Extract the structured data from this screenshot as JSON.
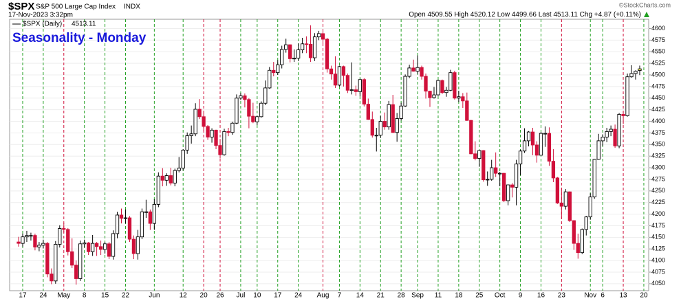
{
  "chart_data": {
    "type": "candlestick",
    "symbol": "$SPX",
    "name": "S&P 500 Large Cap Index",
    "exchange": "INDX",
    "timestamp": "17-Nov-2023 3:32pm",
    "credit": "©StockCharts.com",
    "quote": {
      "open_label": "Open",
      "open": 4509.55,
      "high_label": "High",
      "high": 4520.12,
      "low_label": "Low",
      "low": 4499.66,
      "last_label": "Last",
      "last": 4513.11,
      "chg_label": "Chg",
      "chg": "+4.87 (+0.11%)"
    },
    "legend_label": "$SPX (Daily)",
    "title": "Seasonality - Monday",
    "colors": {
      "up": "#000000",
      "down": "#d0103a",
      "last": "#ffff66",
      "line_up": "#22a022",
      "line_down": "#d0103a",
      "grid": "#eeeeee",
      "title": "#1a1adc"
    },
    "grid": true,
    "ylim": [
      4035,
      4620
    ],
    "yticks": [
      4050,
      4075,
      4100,
      4125,
      4150,
      4175,
      4200,
      4225,
      4250,
      4275,
      4300,
      4325,
      4350,
      4375,
      4400,
      4425,
      4450,
      4475,
      4500,
      4525,
      4550,
      4575,
      4600
    ],
    "categories": [
      null,
      "17",
      null,
      null,
      null,
      null,
      "24",
      null,
      null,
      null,
      null,
      "May",
      null,
      null,
      null,
      null,
      "8",
      null,
      null,
      null,
      null,
      "15",
      null,
      null,
      null,
      null,
      "22",
      null,
      null,
      null,
      null,
      null,
      null,
      "Jun",
      null,
      null,
      null,
      null,
      null,
      null,
      "12",
      null,
      null,
      null,
      null,
      "20",
      null,
      null,
      null,
      "26",
      null,
      null,
      null,
      null,
      "Jul",
      null,
      null,
      null,
      "10",
      null,
      null,
      null,
      null,
      "17",
      null,
      null,
      null,
      null,
      "24",
      null,
      null,
      null,
      null,
      null,
      "Aug",
      null,
      null,
      null,
      "7",
      null,
      null,
      null,
      null,
      "14",
      null,
      null,
      null,
      null,
      "21",
      null,
      null,
      null,
      null,
      "28",
      null,
      null,
      null,
      "Sep",
      null,
      null,
      null,
      null,
      "11",
      null,
      null,
      null,
      null,
      "18",
      null,
      null,
      null,
      null,
      "25",
      null,
      null,
      null,
      null,
      "Oct",
      null,
      null,
      null,
      null,
      "9",
      null,
      null,
      null,
      null,
      "16",
      null,
      null,
      null,
      null,
      "23",
      null,
      null,
      null,
      null,
      null,
      null,
      "Nov",
      null,
      null,
      "6",
      null,
      null,
      null,
      null,
      "13",
      null,
      null,
      null,
      null,
      "20"
    ],
    "ohlc": [
      [
        4140,
        4151,
        4130,
        4137
      ],
      [
        4137,
        4158,
        4130,
        4151
      ],
      [
        4151,
        4164,
        4140,
        4154
      ],
      [
        4154,
        4160,
        4143,
        4154
      ],
      [
        4154,
        4158,
        4122,
        4129
      ],
      [
        4129,
        4140,
        4120,
        4133
      ],
      [
        4133,
        4145,
        4126,
        4137
      ],
      [
        4137,
        4140,
        4064,
        4071
      ],
      [
        4071,
        4083,
        4049,
        4056
      ],
      [
        4056,
        4142,
        4050,
        4135
      ],
      [
        4135,
        4176,
        4128,
        4169
      ],
      [
        4169,
        4180,
        4160,
        4167
      ],
      [
        4167,
        4170,
        4111,
        4119
      ],
      [
        4119,
        4148,
        4084,
        4090
      ],
      [
        4090,
        4100,
        4048,
        4061
      ],
      [
        4061,
        4143,
        4056,
        4136
      ],
      [
        4136,
        4145,
        4128,
        4138
      ],
      [
        4138,
        4140,
        4112,
        4119
      ],
      [
        4119,
        4155,
        4110,
        4137
      ],
      [
        4137,
        4140,
        4110,
        4130
      ],
      [
        4130,
        4143,
        4112,
        4124
      ],
      [
        4124,
        4140,
        4115,
        4136
      ],
      [
        4136,
        4140,
        4103,
        4109
      ],
      [
        4109,
        4165,
        4102,
        4158
      ],
      [
        4158,
        4205,
        4148,
        4198
      ],
      [
        4198,
        4212,
        4180,
        4191
      ],
      [
        4191,
        4210,
        4180,
        4192
      ],
      [
        4192,
        4196,
        4140,
        4146
      ],
      [
        4146,
        4154,
        4103,
        4115
      ],
      [
        4115,
        4166,
        4102,
        4151
      ],
      [
        4151,
        4212,
        4146,
        4205
      ],
      [
        4205,
        4231,
        4192,
        4205
      ],
      [
        4205,
        4210,
        4166,
        4180
      ],
      [
        4180,
        4232,
        4166,
        4221
      ],
      [
        4221,
        4290,
        4215,
        4282
      ],
      [
        4282,
        4299,
        4260,
        4273
      ],
      [
        4273,
        4288,
        4261,
        4283
      ],
      [
        4283,
        4300,
        4262,
        4267
      ],
      [
        4267,
        4298,
        4260,
        4294
      ],
      [
        4294,
        4323,
        4290,
        4299
      ],
      [
        4299,
        4340,
        4294,
        4338
      ],
      [
        4338,
        4376,
        4330,
        4369
      ],
      [
        4369,
        4391,
        4352,
        4373
      ],
      [
        4373,
        4439,
        4368,
        4426
      ],
      [
        4426,
        4448,
        4405,
        4410
      ],
      [
        4410,
        4418,
        4380,
        4389
      ],
      [
        4389,
        4392,
        4360,
        4366
      ],
      [
        4366,
        4385,
        4354,
        4381
      ],
      [
        4381,
        4382,
        4340,
        4348
      ],
      [
        4348,
        4362,
        4320,
        4328
      ],
      [
        4328,
        4384,
        4326,
        4378
      ],
      [
        4378,
        4386,
        4368,
        4376
      ],
      [
        4376,
        4399,
        4371,
        4396
      ],
      [
        4396,
        4458,
        4394,
        4450
      ],
      [
        4450,
        4461,
        4446,
        4455
      ],
      [
        4455,
        4460,
        4430,
        4447
      ],
      [
        4447,
        4450,
        4385,
        4411
      ],
      [
        4411,
        4440,
        4396,
        4399
      ],
      [
        4399,
        4412,
        4392,
        4410
      ],
      [
        4410,
        4443,
        4408,
        4439
      ],
      [
        4439,
        4488,
        4435,
        4472
      ],
      [
        4472,
        4517,
        4470,
        4510
      ],
      [
        4510,
        4528,
        4497,
        4505
      ],
      [
        4505,
        4532,
        4500,
        4522
      ],
      [
        4522,
        4563,
        4514,
        4555
      ],
      [
        4555,
        4578,
        4548,
        4565
      ],
      [
        4565,
        4566,
        4527,
        4535
      ],
      [
        4535,
        4555,
        4528,
        4536
      ],
      [
        4536,
        4568,
        4530,
        4554
      ],
      [
        4554,
        4580,
        4547,
        4567
      ],
      [
        4567,
        4583,
        4547,
        4566
      ],
      [
        4566,
        4607,
        4528,
        4537
      ],
      [
        4537,
        4590,
        4530,
        4582
      ],
      [
        4582,
        4595,
        4575,
        4589
      ],
      [
        4589,
        4594,
        4566,
        4577
      ],
      [
        4577,
        4580,
        4505,
        4513
      ],
      [
        4513,
        4520,
        4490,
        4502
      ],
      [
        4502,
        4540,
        4472,
        4478
      ],
      [
        4478,
        4520,
        4475,
        4518
      ],
      [
        4518,
        4520,
        4475,
        4499
      ],
      [
        4499,
        4503,
        4461,
        4467
      ],
      [
        4467,
        4527,
        4458,
        4468
      ],
      [
        4468,
        4477,
        4455,
        4464
      ],
      [
        4464,
        4492,
        4454,
        4490
      ],
      [
        4490,
        4493,
        4432,
        4437
      ],
      [
        4437,
        4449,
        4403,
        4404
      ],
      [
        4404,
        4421,
        4365,
        4370
      ],
      [
        4370,
        4386,
        4335,
        4370
      ],
      [
        4370,
        4412,
        4364,
        4400
      ],
      [
        4400,
        4419,
        4382,
        4388
      ],
      [
        4388,
        4444,
        4382,
        4436
      ],
      [
        4436,
        4457,
        4375,
        4376
      ],
      [
        4376,
        4418,
        4356,
        4406
      ],
      [
        4406,
        4440,
        4402,
        4433
      ],
      [
        4433,
        4501,
        4431,
        4497
      ],
      [
        4497,
        4522,
        4493,
        4515
      ],
      [
        4515,
        4533,
        4507,
        4508
      ],
      [
        4508,
        4542,
        4502,
        4516
      ],
      [
        4516,
        4520,
        4490,
        4497
      ],
      [
        4497,
        4503,
        4449,
        4465
      ],
      [
        4465,
        4466,
        4431,
        4451
      ],
      [
        4451,
        4474,
        4449,
        4457
      ],
      [
        4457,
        4490,
        4455,
        4488
      ],
      [
        4488,
        4490,
        4459,
        4462
      ],
      [
        4462,
        4474,
        4453,
        4467
      ],
      [
        4467,
        4511,
        4465,
        4505
      ],
      [
        4505,
        4509,
        4447,
        4450
      ],
      [
        4450,
        4466,
        4442,
        4453
      ],
      [
        4453,
        4461,
        4429,
        4444
      ],
      [
        4444,
        4462,
        4401,
        4402
      ],
      [
        4402,
        4403,
        4329,
        4330
      ],
      [
        4330,
        4357,
        4316,
        4320
      ],
      [
        4320,
        4338,
        4302,
        4337
      ],
      [
        4337,
        4338,
        4270,
        4274
      ],
      [
        4274,
        4292,
        4261,
        4275
      ],
      [
        4275,
        4317,
        4272,
        4300
      ],
      [
        4300,
        4333,
        4280,
        4288
      ],
      [
        4288,
        4291,
        4260,
        4288
      ],
      [
        4288,
        4289,
        4226,
        4229
      ],
      [
        4229,
        4264,
        4219,
        4263
      ],
      [
        4263,
        4267,
        4236,
        4258
      ],
      [
        4258,
        4317,
        4219,
        4308
      ],
      [
        4308,
        4339,
        4284,
        4336
      ],
      [
        4336,
        4385,
        4332,
        4358
      ],
      [
        4358,
        4379,
        4346,
        4377
      ],
      [
        4377,
        4386,
        4327,
        4349
      ],
      [
        4349,
        4357,
        4311,
        4327
      ],
      [
        4327,
        4377,
        4326,
        4374
      ],
      [
        4374,
        4389,
        4345,
        4374
      ],
      [
        4374,
        4387,
        4304,
        4314
      ],
      [
        4314,
        4340,
        4269,
        4278
      ],
      [
        4278,
        4280,
        4222,
        4224
      ],
      [
        4224,
        4256,
        4190,
        4217
      ],
      [
        4217,
        4254,
        4210,
        4248
      ],
      [
        4248,
        4249,
        4183,
        4186
      ],
      [
        4186,
        4187,
        4123,
        4137
      ],
      [
        4137,
        4158,
        4104,
        4117
      ],
      [
        4117,
        4169,
        4114,
        4167
      ],
      [
        4167,
        4196,
        4154,
        4194
      ],
      [
        4194,
        4245,
        4188,
        4237
      ],
      [
        4237,
        4319,
        4233,
        4318
      ],
      [
        4318,
        4373,
        4317,
        4358
      ],
      [
        4358,
        4372,
        4347,
        4366
      ],
      [
        4366,
        4386,
        4355,
        4378
      ],
      [
        4378,
        4391,
        4368,
        4383
      ],
      [
        4383,
        4393,
        4343,
        4347
      ],
      [
        4347,
        4418,
        4342,
        4415
      ],
      [
        4415,
        4421,
        4394,
        4412
      ],
      [
        4412,
        4503,
        4410,
        4496
      ],
      [
        4496,
        4521,
        4494,
        4503
      ],
      [
        4503,
        4510,
        4490,
        4508
      ],
      [
        4509.55,
        4520.12,
        4499.66,
        4513.11
      ],
      null
    ]
  }
}
